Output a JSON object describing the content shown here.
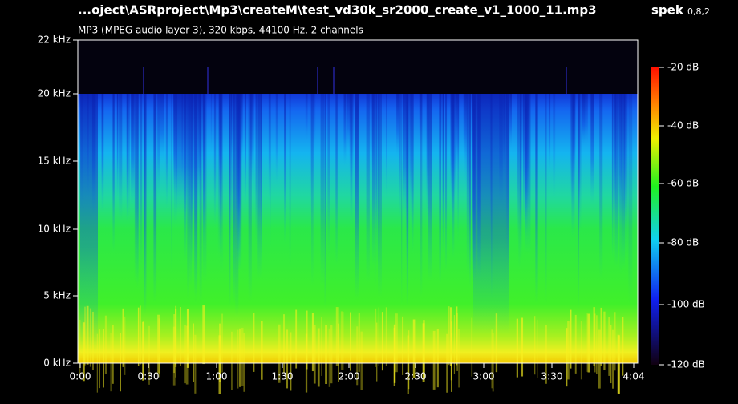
{
  "header": {
    "file": "...oject\\ASRproject\\Mp3\\createM\\test_vd30k_sr2000_create_v1_1000_11.mp3",
    "app": "spek",
    "version": "0,8,2",
    "info": "MP3 (MPEG audio layer 3), 320 kbps, 44100 Hz, 2 channels"
  },
  "frequency_axis": {
    "labels": [
      "22 kHz",
      "20 kHz",
      "15 kHz",
      "10 kHz",
      "5 kHz",
      "0 kHz"
    ]
  },
  "time_axis": {
    "labels": [
      "0:00",
      "0:30",
      "1:00",
      "1:30",
      "2:00",
      "2:30",
      "3:00",
      "3:30",
      "4:04"
    ]
  },
  "db_scale": {
    "labels": [
      "-20 dB",
      "-40 dB",
      "-60 dB",
      "-80 dB",
      "-100 dB",
      "-120 dB"
    ]
  }
}
